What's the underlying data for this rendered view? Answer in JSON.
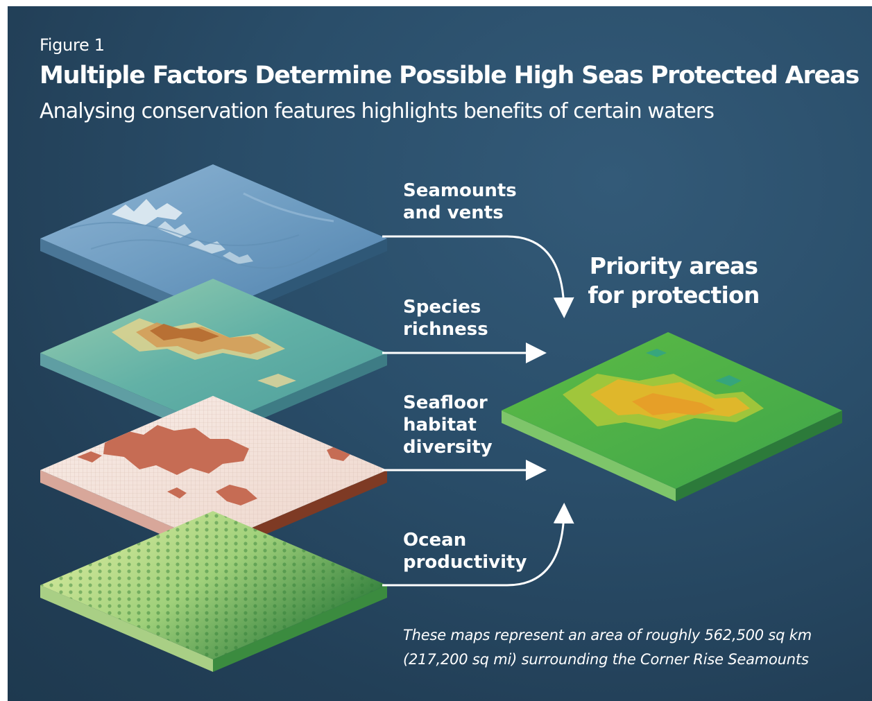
{
  "figure_label": "Figure 1",
  "title": "Multiple Factors Determine Possible High Seas Protected Areas",
  "subtitle": "Analysing conservation features highlights benefits of certain waters",
  "layers": [
    {
      "id": "seamounts",
      "label": "Seamounts\nand vents"
    },
    {
      "id": "species",
      "label": "Species\nrichness"
    },
    {
      "id": "seafloor",
      "label": "Seafloor\nhabitat\ndiversity"
    },
    {
      "id": "productivity",
      "label": "Ocean\nproductivity"
    }
  ],
  "result_label": "Priority areas\nfor protection",
  "caption": "These maps represent an area of roughly 562,500 sq km (217,200 sq mi) surrounding the Corner Rise Seamounts",
  "colors": {
    "background": "#264863",
    "seamounts_top": "#7aa6c8",
    "species_top": "#6fb7a3",
    "species_hot": "#c17a3c",
    "seafloor_top": "#f2e1da",
    "seafloor_blocks": "#c9735c",
    "productivity_top": "#b9dc86",
    "productivity_dark": "#3f9445",
    "priority_top": "#4fb34a",
    "priority_hot": "#e9b328",
    "arrow": "#ffffff"
  }
}
